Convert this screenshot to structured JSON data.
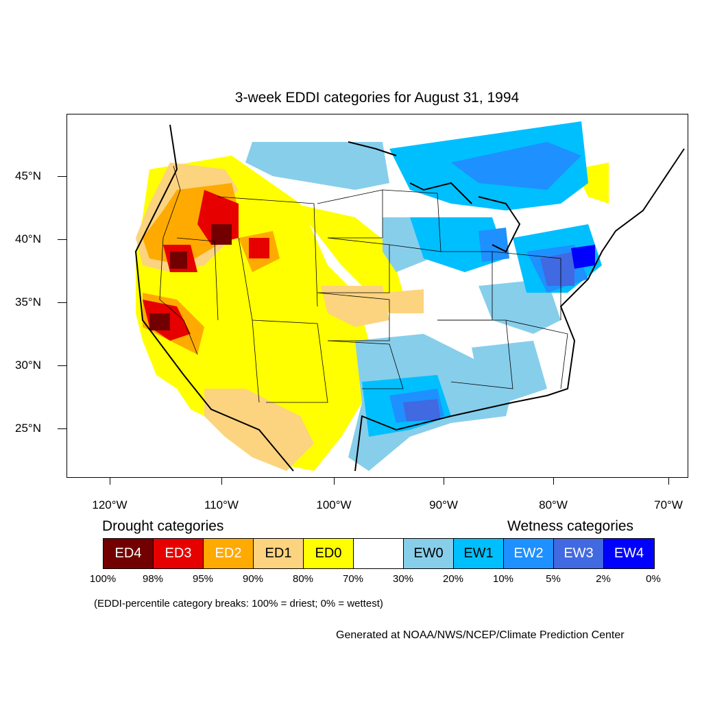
{
  "title": "3-week EDDI categories for August 31, 1994",
  "lat_labels": [
    "45°N",
    "40°N",
    "35°N",
    "30°N",
    "25°N"
  ],
  "lon_labels": [
    "120°W",
    "110°W",
    "100°W",
    "90°W",
    "80°W",
    "70°W"
  ],
  "legend": {
    "drought_heading": "Drought categories",
    "wetness_heading": "Wetness categories",
    "categories": [
      {
        "label": "ED4",
        "color": "#730000",
        "text_color": "#ffffff"
      },
      {
        "label": "ED3",
        "color": "#e60000",
        "text_color": "#ffffff"
      },
      {
        "label": "ED2",
        "color": "#ffaa00",
        "text_color": "#ffffff"
      },
      {
        "label": "ED1",
        "color": "#fcd37f",
        "text_color": "#000000"
      },
      {
        "label": "ED0",
        "color": "#ffff00",
        "text_color": "#000000"
      },
      {
        "label": "",
        "color": "#ffffff",
        "text_color": "#000000"
      },
      {
        "label": "EW0",
        "color": "#87ceeb",
        "text_color": "#000000"
      },
      {
        "label": "EW1",
        "color": "#00bfff",
        "text_color": "#000000"
      },
      {
        "label": "EW2",
        "color": "#1e90ff",
        "text_color": "#ffffff"
      },
      {
        "label": "EW3",
        "color": "#4169e1",
        "text_color": "#ffffff"
      },
      {
        "label": "EW4",
        "color": "#0000ff",
        "text_color": "#ffffff"
      }
    ],
    "percentiles": [
      "100%",
      "98%",
      "95%",
      "90%",
      "80%",
      "70%",
      "30%",
      "20%",
      "10%",
      "5%",
      "2%",
      "0%"
    ]
  },
  "note": "(EDDI-percentile category breaks: 100% = driest; 0% = wettest)",
  "credit": "Generated at NOAA/NWS/NCEP/Climate Prediction Center"
}
